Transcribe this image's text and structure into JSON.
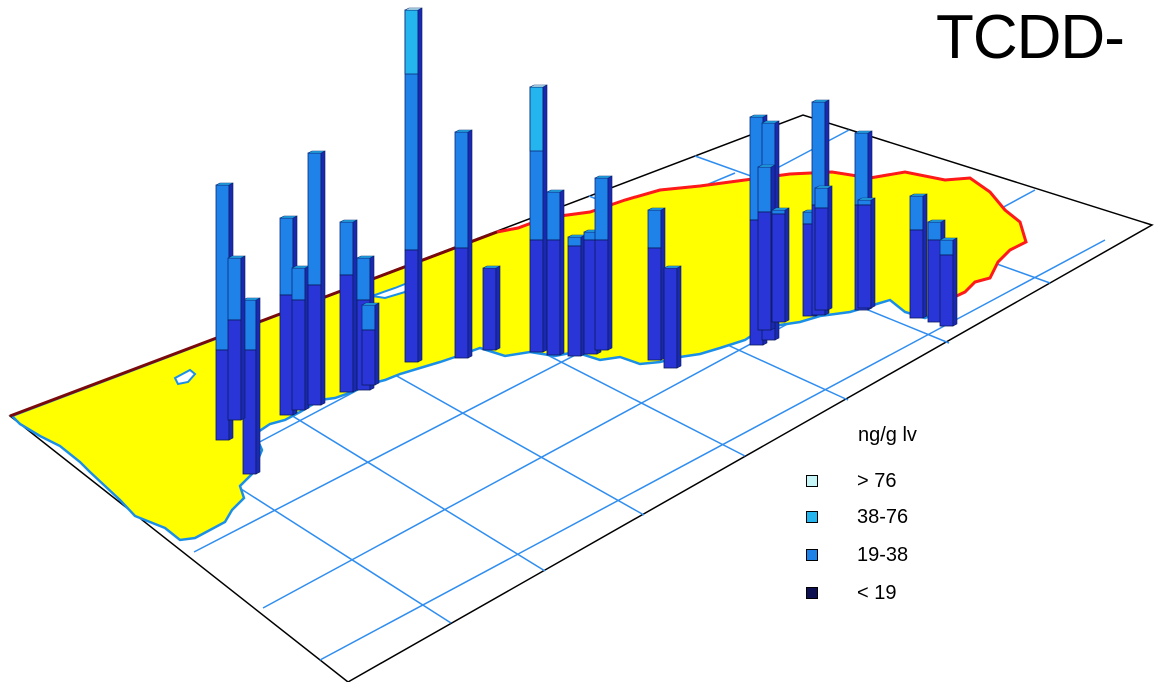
{
  "title": "TCDD-",
  "legend": {
    "title": "ng/g lv",
    "items": [
      {
        "label": "> 76",
        "color": "#c6f5f8"
      },
      {
        "label": "38-76",
        "color": "#25b5ee"
      },
      {
        "label": "19-38",
        "color": "#1f82e8"
      },
      {
        "label": "< 19",
        "color": "#0d1050"
      }
    ]
  },
  "colors": {
    "land": "#ffff00",
    "coast": "#1b8fe8",
    "border": "#ff1a1a",
    "grid": "#2f8df0",
    "bar_low": "#2a35d8",
    "bar_mid": "#1f82e8",
    "bar_high": "#25b5ee",
    "bar_top": "#c6f5f8"
  }
}
